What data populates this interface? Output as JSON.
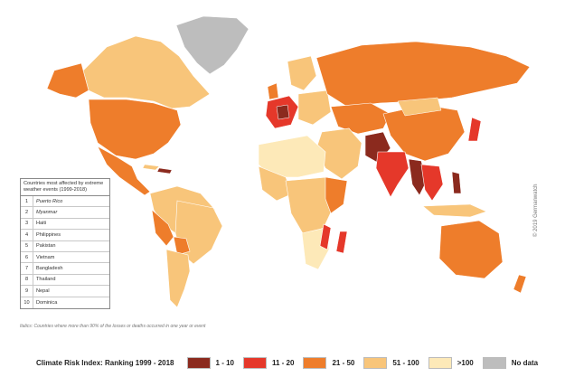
{
  "table": {
    "title": "Countries most affected by extreme weather events (1999-2018)",
    "rows": [
      {
        "rank": "1",
        "name": "Puerto Rico",
        "italic": true
      },
      {
        "rank": "2",
        "name": "Myanmar",
        "italic": true
      },
      {
        "rank": "3",
        "name": "Haiti",
        "italic": false
      },
      {
        "rank": "4",
        "name": "Philippines",
        "italic": false
      },
      {
        "rank": "5",
        "name": "Pakistan",
        "italic": false
      },
      {
        "rank": "6",
        "name": "Vietnam",
        "italic": false
      },
      {
        "rank": "7",
        "name": "Bangladesh",
        "italic": false
      },
      {
        "rank": "8",
        "name": "Thailand",
        "italic": false
      },
      {
        "rank": "9",
        "name": "Nepal",
        "italic": false
      },
      {
        "rank": "10",
        "name": "Dominica",
        "italic": false
      }
    ]
  },
  "footnote": "Italics: Countries where more than 90% of the losses or deaths occurred in one year or event",
  "copyright": "© 2019 Germanwatch",
  "legend": {
    "title": "Climate Risk Index: Ranking 1999 - 2018",
    "items": [
      {
        "label": "1 - 10",
        "color": "#8b2a1e"
      },
      {
        "label": "11 - 20",
        "color": "#e5382a"
      },
      {
        "label": "21 - 50",
        "color": "#ee7d2b"
      },
      {
        "label": "51 - 100",
        "color": "#f8c57a"
      },
      {
        "label": ">100",
        "color": "#fde9b8"
      },
      {
        "label": "No data",
        "color": "#bdbdbd"
      }
    ]
  }
}
